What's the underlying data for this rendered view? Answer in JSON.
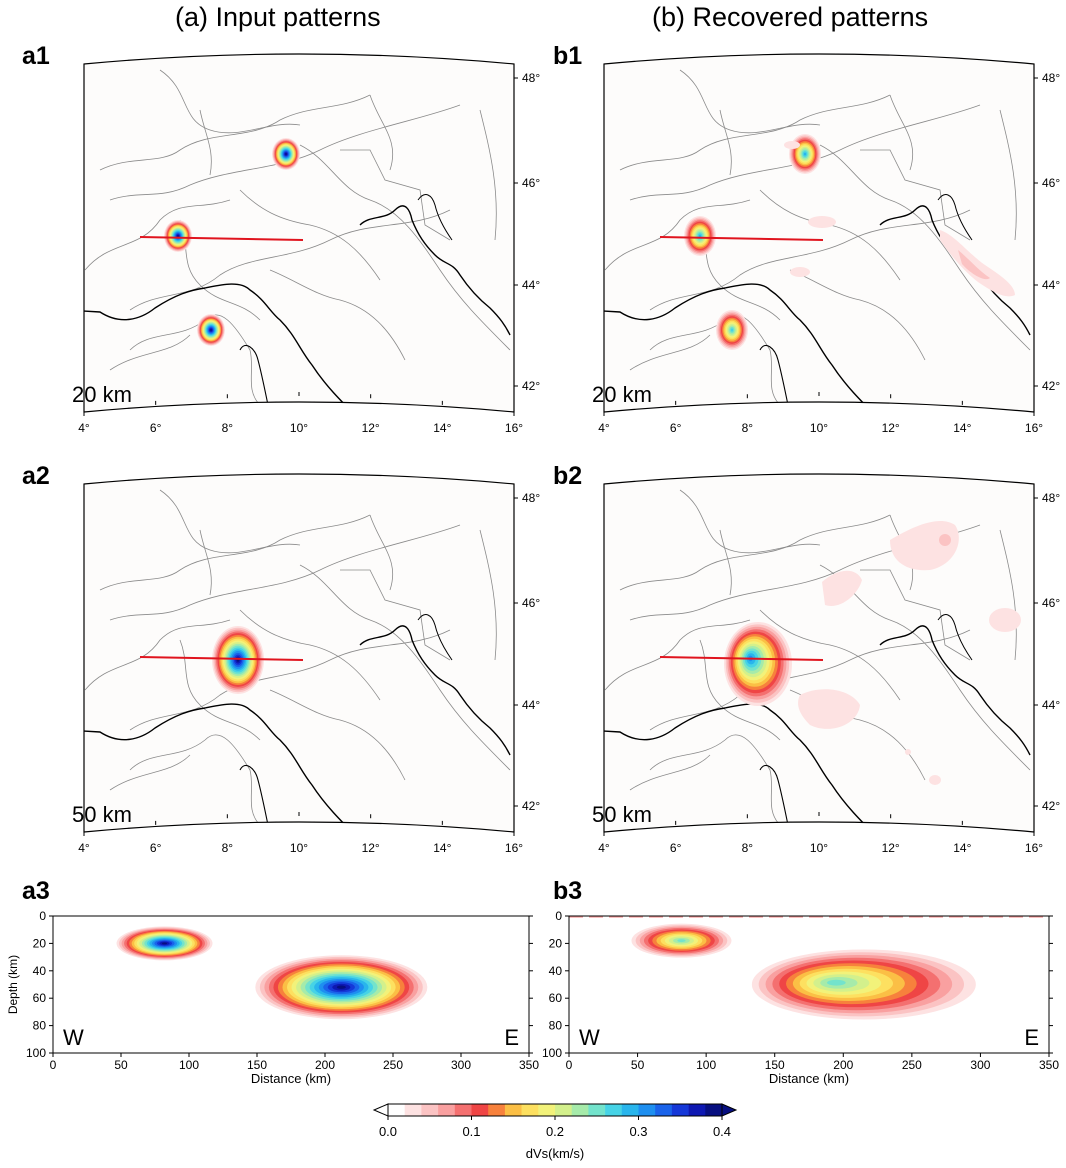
{
  "titles": {
    "left": "(a) Input patterns",
    "right": "(b) Recovered patterns"
  },
  "panels": {
    "a1": {
      "label": "a1",
      "depth": "20 km"
    },
    "b1": {
      "label": "b1",
      "depth": "20 km"
    },
    "a2": {
      "label": "a2",
      "depth": "50 km"
    },
    "b2": {
      "label": "b2",
      "depth": "50 km"
    },
    "a3": {
      "label": "a3"
    },
    "b3": {
      "label": "b3"
    }
  },
  "map_axes": {
    "lon_ticks": [
      "4°",
      "6°",
      "8°",
      "10°",
      "12°",
      "14°",
      "16°"
    ],
    "lat_ticks": [
      "48°",
      "46°",
      "44°",
      "42°"
    ]
  },
  "xsec_axes": {
    "xlabel": "Distance (km)",
    "ylabel": "Depth (km)",
    "x_ticks": [
      "0",
      "50",
      "100",
      "150",
      "200",
      "250",
      "300",
      "350"
    ],
    "y_ticks": [
      "0",
      "20",
      "40",
      "60",
      "80",
      "100"
    ],
    "west": "W",
    "east": "E"
  },
  "colorbar": {
    "label": "dVs(km/s)",
    "ticks": [
      "0.0",
      "0.1",
      "0.2",
      "0.3",
      "0.4"
    ],
    "colors": [
      "#ffffff",
      "#fde2e2",
      "#fbc3c3",
      "#f9a0a0",
      "#f47070",
      "#ef4545",
      "#f7813c",
      "#fbbf45",
      "#fde060",
      "#f2f27a",
      "#d3f08c",
      "#a6ebaa",
      "#73e3cc",
      "#46d3e6",
      "#29b5ec",
      "#1e8ff0",
      "#1a63ea",
      "#1538d8",
      "#0e18b2",
      "#070f80"
    ]
  }
}
